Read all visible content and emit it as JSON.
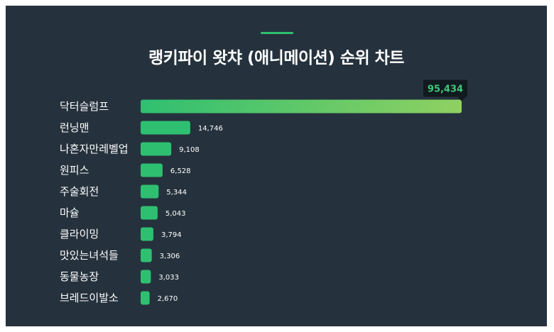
{
  "title": "랭키파이 왓챠 (애니메이션) 순위 차트",
  "colors": {
    "background": "#25323d",
    "accent": "#2fbf71",
    "bar": "#2fbf71",
    "top_bar_start": "#2fbf71",
    "top_bar_end": "#8fd161",
    "top_label_bg": "#111a1f",
    "top_label_text": "#3fc77a"
  },
  "chart_data": {
    "type": "bar",
    "orientation": "horizontal",
    "title": "랭키파이 왓챠 (애니메이션) 순위 차트",
    "categories": [
      "닥터슬럼프",
      "런닝맨",
      "나혼자만레벨업",
      "원피스",
      "주술회전",
      "마슐",
      "클라이밍",
      "맛있는녀석들",
      "동물농장",
      "브레드이발소"
    ],
    "values": [
      95434,
      14746,
      9108,
      6528,
      5344,
      5043,
      3794,
      3306,
      3033,
      2670
    ],
    "value_labels": [
      "95,434",
      "14,746",
      "9,108",
      "6,528",
      "5,344",
      "5,043",
      "3,794",
      "3,306",
      "3,033",
      "2,670"
    ],
    "xlabel": "",
    "ylabel": "",
    "xlim": [
      0,
      95434
    ],
    "grid": false,
    "legend": "none"
  }
}
